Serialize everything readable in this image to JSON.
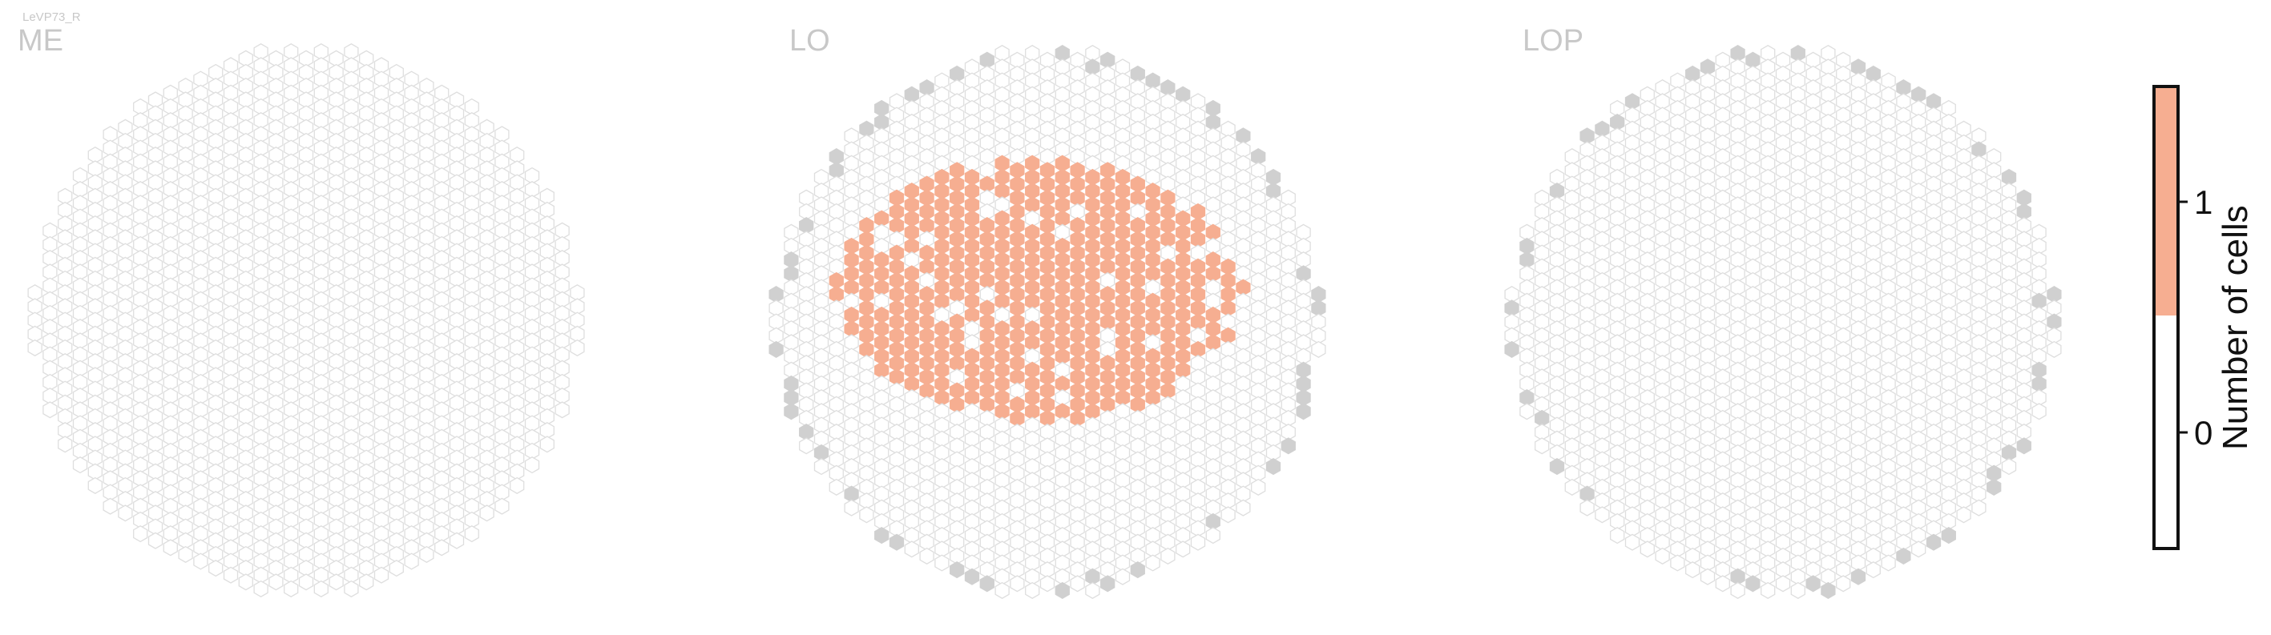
{
  "corner_label": "LeVP73_R",
  "chart_data": {
    "type": "heatmap",
    "description_of_values": "hexagonal eye-map, each hexagon is a column; value = number of cells",
    "panels": [
      {
        "title": "ME",
        "highlighted_columns": 0,
        "edge_marked": false
      },
      {
        "title": "LO",
        "highlighted_columns": 229,
        "edge_marked": true
      },
      {
        "title": "LOP",
        "highlighted_columns": 0,
        "edge_marked": true
      }
    ],
    "colorbar": {
      "label": "Number of cells",
      "ticks": [
        "0",
        "1"
      ],
      "range": [
        -0.5,
        1.5
      ],
      "colors": {
        "0": "#ffffff",
        "1": "#f6ae91"
      }
    },
    "colors": {
      "hex_outline": "#dedede",
      "hex_fill_empty": "#ffffff",
      "hex_fill_one": "#f6ae91",
      "hex_edge_marker": "#d0d0d0",
      "title": "#c8c8c8"
    }
  }
}
